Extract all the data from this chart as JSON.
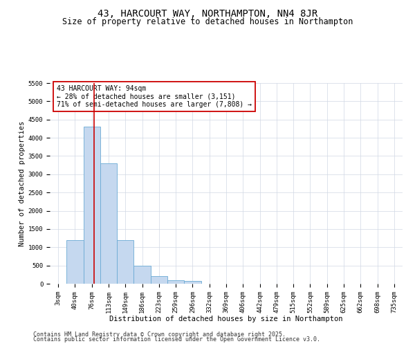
{
  "title": "43, HARCOURT WAY, NORTHAMPTON, NN4 8JR",
  "subtitle": "Size of property relative to detached houses in Northampton",
  "xlabel": "Distribution of detached houses by size in Northampton",
  "ylabel": "Number of detached properties",
  "categories": [
    "3sqm",
    "40sqm",
    "76sqm",
    "113sqm",
    "149sqm",
    "186sqm",
    "223sqm",
    "259sqm",
    "296sqm",
    "332sqm",
    "369sqm",
    "406sqm",
    "442sqm",
    "479sqm",
    "515sqm",
    "552sqm",
    "589sqm",
    "625sqm",
    "662sqm",
    "698sqm",
    "735sqm"
  ],
  "values": [
    0,
    1200,
    4300,
    3300,
    1200,
    500,
    200,
    100,
    70,
    0,
    0,
    0,
    0,
    0,
    0,
    0,
    0,
    0,
    0,
    0,
    0
  ],
  "bar_color": "#c5d8ef",
  "bar_edgecolor": "#6aaad4",
  "vline_x": 2.15,
  "vline_color": "#cc0000",
  "annotation_text": "43 HARCOURT WAY: 94sqm\n← 28% of detached houses are smaller (3,151)\n71% of semi-detached houses are larger (7,808) →",
  "annotation_box_color": "#ffffff",
  "annotation_box_edgecolor": "#cc0000",
  "ylim": [
    0,
    5500
  ],
  "yticks": [
    0,
    500,
    1000,
    1500,
    2000,
    2500,
    3000,
    3500,
    4000,
    4500,
    5000,
    5500
  ],
  "footer1": "Contains HM Land Registry data © Crown copyright and database right 2025.",
  "footer2": "Contains public sector information licensed under the Open Government Licence v3.0.",
  "background_color": "#ffffff",
  "grid_color": "#d0d8e4",
  "title_fontsize": 10,
  "subtitle_fontsize": 8.5,
  "axis_label_fontsize": 7.5,
  "tick_fontsize": 6.5,
  "annotation_fontsize": 7,
  "footer_fontsize": 6
}
